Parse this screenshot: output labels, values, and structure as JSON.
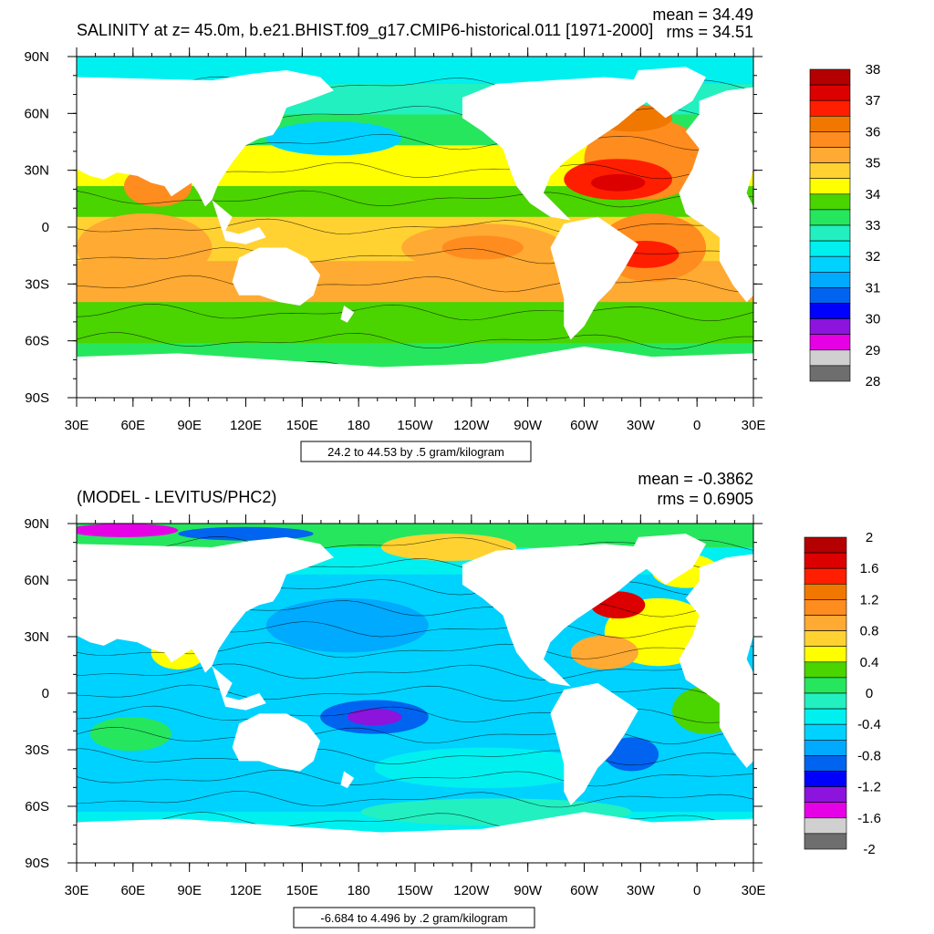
{
  "panels": [
    {
      "id": "top",
      "title": "SALINITY at z=  45.0m, b.e21.BHIST.f09_g17.CMIP6-historical.011 [1971-2000]",
      "stats": {
        "mean": "mean = 34.49",
        "rms": "rms = 34.51"
      },
      "range_label": "24.2 to 44.53 by .5 gram/kilogram",
      "colorbar": {
        "labels": [
          "38",
          "37",
          "36",
          "35",
          "34",
          "33",
          "32",
          "31",
          "30",
          "29",
          "28"
        ],
        "colors": [
          "#b40000",
          "#dc0000",
          "#ff1e00",
          "#f07800",
          "#ff8c1e",
          "#ffaa32",
          "#ffd232",
          "#ffff00",
          "#4ad400",
          "#26e65e",
          "#22f0c0",
          "#00f0f0",
          "#00d2ff",
          "#00aaff",
          "#0064f0",
          "#0000ff",
          "#8c14dc",
          "#e600e6",
          "#d0d0d0",
          "#6e6e6e"
        ]
      }
    },
    {
      "id": "bottom",
      "title": "(MODEL - LEVITUS/PHC2)",
      "stats": {
        "mean": "mean = -0.3862",
        "rms": "rms = 0.6905"
      },
      "range_label": "-6.684 to 4.496 by .2 gram/kilogram",
      "colorbar": {
        "labels": [
          "2",
          "1.6",
          "1.2",
          "0.8",
          "0.4",
          "0",
          "-0.4",
          "-0.8",
          "-1.2",
          "-1.6",
          "-2"
        ],
        "colors": [
          "#b40000",
          "#dc0000",
          "#ff1e00",
          "#f07800",
          "#ff8c1e",
          "#ffaa32",
          "#ffd232",
          "#ffff00",
          "#4ad400",
          "#26e65e",
          "#22f0c0",
          "#00f0f0",
          "#00d2ff",
          "#00aaff",
          "#0064f0",
          "#0000ff",
          "#8c14dc",
          "#e600e6",
          "#d0d0d0",
          "#6e6e6e"
        ]
      }
    }
  ],
  "axes": {
    "lat_labels": [
      "90N",
      "60N",
      "30N",
      "0",
      "30S",
      "60S",
      "90S"
    ],
    "lon_labels": [
      "30E",
      "60E",
      "90E",
      "120E",
      "150E",
      "180",
      "150W",
      "120W",
      "90W",
      "60W",
      "30W",
      "0",
      "30E"
    ]
  },
  "colors": {
    "land": "#ffffff",
    "frame": "#000000",
    "contour": "#000000"
  }
}
